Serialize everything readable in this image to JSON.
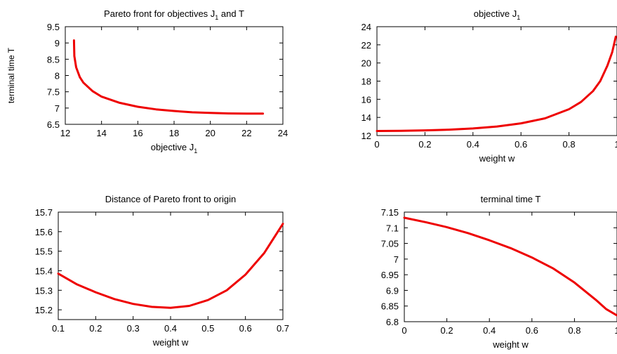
{
  "figure": {
    "line_color": "#ee0000",
    "axis_color": "#000000",
    "background": "#ffffff"
  },
  "chart_data": [
    {
      "id": "pareto",
      "type": "line",
      "title": "Pareto front for objectives  J",
      "title_sub": "1",
      "title_rest": "  and  T",
      "xlabel": "objective  J",
      "xlabel_sub": "1",
      "ylabel": "terminal time  T",
      "xlim": [
        12,
        24
      ],
      "ylim": [
        6.5,
        9.5
      ],
      "xticks": [
        12,
        14,
        16,
        18,
        20,
        22,
        24
      ],
      "yticks": [
        6.5,
        7,
        7.5,
        8,
        8.5,
        9,
        9.5
      ],
      "xtick_labels": [
        "12",
        "14",
        "16",
        "18",
        "20",
        "22",
        "24"
      ],
      "ytick_labels": [
        "6.5",
        "7",
        "7.5",
        "8",
        "8.5",
        "9",
        "9.5"
      ],
      "grid": false,
      "series": [
        {
          "x": [
            12.48,
            12.5,
            12.6,
            12.8,
            13.0,
            13.5,
            14.0,
            15.0,
            16.0,
            17.0,
            18.0,
            19.0,
            20.0,
            21.0,
            22.0,
            22.9
          ],
          "y": [
            9.08,
            8.6,
            8.25,
            7.95,
            7.78,
            7.52,
            7.35,
            7.16,
            7.04,
            6.96,
            6.91,
            6.87,
            6.85,
            6.835,
            6.83,
            6.83
          ]
        }
      ]
    },
    {
      "id": "objective",
      "type": "line",
      "title": "objective  J",
      "title_sub": "1",
      "title_rest": "",
      "xlabel": "weight  w",
      "xlabel_sub": "",
      "ylabel": "",
      "xlim": [
        0,
        1
      ],
      "ylim": [
        12,
        24
      ],
      "xticks": [
        0,
        0.2,
        0.4,
        0.6,
        0.8,
        1
      ],
      "yticks": [
        12,
        14,
        16,
        18,
        20,
        22,
        24
      ],
      "xtick_labels": [
        "0",
        "0.2",
        "0.4",
        "0.6",
        "0.8",
        "1"
      ],
      "ytick_labels": [
        "12",
        "14",
        "16",
        "18",
        "20",
        "22",
        "24"
      ],
      "grid": false,
      "series": [
        {
          "x": [
            0,
            0.1,
            0.2,
            0.3,
            0.4,
            0.5,
            0.6,
            0.7,
            0.8,
            0.85,
            0.9,
            0.93,
            0.96,
            0.98,
            0.995
          ],
          "y": [
            12.5,
            12.52,
            12.57,
            12.65,
            12.78,
            13.0,
            13.35,
            13.9,
            14.9,
            15.7,
            16.9,
            18.0,
            19.7,
            21.2,
            22.9
          ]
        }
      ]
    },
    {
      "id": "distance",
      "type": "line",
      "title": "Distance of Pareto front to origin",
      "title_sub": "",
      "title_rest": "",
      "xlabel": "weight  w",
      "xlabel_sub": "",
      "ylabel": "",
      "xlim": [
        0.1,
        0.7
      ],
      "ylim": [
        15.15,
        15.7
      ],
      "xticks": [
        0.1,
        0.2,
        0.3,
        0.4,
        0.5,
        0.6,
        0.7
      ],
      "yticks": [
        15.2,
        15.3,
        15.4,
        15.5,
        15.6,
        15.7
      ],
      "xtick_labels": [
        "0.1",
        "0.2",
        "0.3",
        "0.4",
        "0.5",
        "0.6",
        "0.7"
      ],
      "ytick_labels": [
        "15.2",
        "15.3",
        "15.4",
        "15.5",
        "15.6",
        "15.7"
      ],
      "grid": false,
      "series": [
        {
          "x": [
            0.1,
            0.15,
            0.2,
            0.25,
            0.3,
            0.35,
            0.4,
            0.45,
            0.5,
            0.55,
            0.6,
            0.65,
            0.7
          ],
          "y": [
            15.385,
            15.33,
            15.29,
            15.255,
            15.23,
            15.215,
            15.21,
            15.22,
            15.25,
            15.3,
            15.38,
            15.49,
            15.64
          ]
        }
      ]
    },
    {
      "id": "terminal",
      "type": "line",
      "title": "terminal time  T",
      "title_sub": "",
      "title_rest": "",
      "xlabel": "weight  w",
      "xlabel_sub": "",
      "ylabel": "",
      "xlim": [
        0,
        1
      ],
      "ylim": [
        6.8,
        7.15
      ],
      "xticks": [
        0,
        0.2,
        0.4,
        0.6,
        0.8,
        1
      ],
      "yticks": [
        6.8,
        6.85,
        6.9,
        6.95,
        7,
        7.05,
        7.1,
        7.15
      ],
      "xtick_labels": [
        "0",
        "0.2",
        "0.4",
        "0.6",
        "0.8",
        "1"
      ],
      "ytick_labels": [
        "6.8",
        "6.85",
        "6.9",
        "6.95",
        "7",
        "7.05",
        "7.1",
        "7.15"
      ],
      "grid": false,
      "series": [
        {
          "x": [
            0,
            0.1,
            0.2,
            0.3,
            0.4,
            0.5,
            0.6,
            0.7,
            0.8,
            0.9,
            0.95,
            1.0
          ],
          "y": [
            7.132,
            7.118,
            7.102,
            7.083,
            7.06,
            7.035,
            7.005,
            6.97,
            6.925,
            6.87,
            6.84,
            6.82
          ]
        }
      ]
    }
  ]
}
